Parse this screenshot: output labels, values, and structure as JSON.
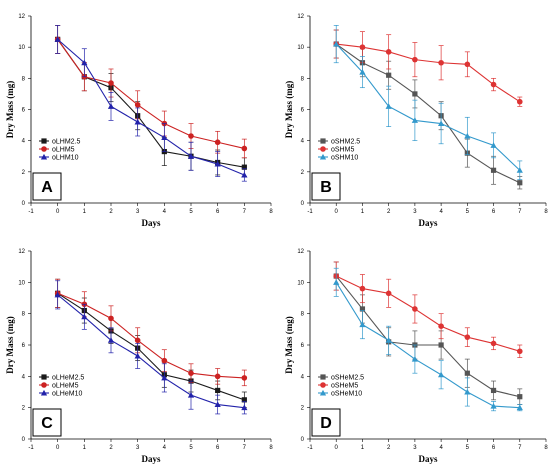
{
  "chart_data": [
    {
      "type": "line",
      "panel_label": "A",
      "xlabel": "Days",
      "ylabel": "Dry Mass (mg)",
      "xlim": [
        -1,
        8
      ],
      "ylim": [
        0,
        12
      ],
      "xticks": [
        -1,
        0,
        1,
        2,
        3,
        4,
        5,
        6,
        7,
        8
      ],
      "yticks": [
        0,
        2,
        4,
        6,
        8,
        10,
        12
      ],
      "legend_position": "bottom-left",
      "x": [
        0,
        1,
        2,
        3,
        4,
        5,
        6,
        7
      ],
      "series": [
        {
          "name": "oLHM2.5",
          "color": "#1a1a1a",
          "marker": "square",
          "values": [
            10.5,
            8.1,
            7.4,
            5.6,
            3.3,
            3.0,
            2.6,
            2.3
          ],
          "errors": [
            0.9,
            0.9,
            0.9,
            0.9,
            0.9,
            0.9,
            0.8,
            0.6
          ]
        },
        {
          "name": "oLHM5",
          "color": "#cc2222",
          "marker": "circle",
          "values": [
            10.5,
            8.1,
            7.7,
            6.3,
            5.1,
            4.3,
            3.9,
            3.5
          ],
          "errors": [
            0.9,
            0.9,
            0.9,
            0.9,
            0.8,
            0.8,
            0.7,
            0.6
          ]
        },
        {
          "name": "oLHM10",
          "color": "#2222aa",
          "marker": "triangle",
          "values": [
            10.5,
            9.0,
            6.2,
            5.2,
            4.2,
            3.0,
            2.5,
            1.8
          ],
          "errors": [
            0.9,
            0.9,
            0.9,
            0.9,
            0.9,
            0.9,
            0.8,
            0.4
          ]
        }
      ]
    },
    {
      "type": "line",
      "panel_label": "B",
      "xlabel": "Days",
      "ylabel": "Dry Mass (mg)",
      "xlim": [
        -1,
        8
      ],
      "ylim": [
        0,
        12
      ],
      "xticks": [
        -1,
        0,
        1,
        2,
        3,
        4,
        5,
        6,
        7,
        8
      ],
      "yticks": [
        0,
        2,
        4,
        6,
        8,
        10,
        12
      ],
      "legend_position": "bottom-left",
      "x": [
        0,
        1,
        2,
        3,
        4,
        5,
        6,
        7
      ],
      "series": [
        {
          "name": "oSHM2.5",
          "color": "#555555",
          "marker": "square",
          "values": [
            10.2,
            9.0,
            8.2,
            7.0,
            5.6,
            3.2,
            2.1,
            1.3
          ],
          "errors": [
            0.9,
            0.9,
            0.9,
            0.9,
            0.9,
            0.9,
            0.9,
            0.4
          ]
        },
        {
          "name": "oSHM5",
          "color": "#dd3333",
          "marker": "circle",
          "values": [
            10.2,
            10.0,
            9.7,
            9.2,
            9.0,
            8.9,
            7.6,
            6.5
          ],
          "errors": [
            0.9,
            1.0,
            1.1,
            1.1,
            1.1,
            0.8,
            0.4,
            0.3
          ]
        },
        {
          "name": "oSHM10",
          "color": "#3399cc",
          "marker": "triangle",
          "values": [
            10.2,
            8.4,
            6.2,
            5.3,
            5.1,
            4.3,
            3.7,
            2.1
          ],
          "errors": [
            1.2,
            1.0,
            1.3,
            1.3,
            1.3,
            1.2,
            0.8,
            0.6
          ]
        }
      ]
    },
    {
      "type": "line",
      "panel_label": "C",
      "xlabel": "Days",
      "ylabel": "Dry Mass (mg)",
      "xlim": [
        -1,
        8
      ],
      "ylim": [
        0,
        12
      ],
      "xticks": [
        -1,
        0,
        1,
        2,
        3,
        4,
        5,
        6,
        7,
        8
      ],
      "yticks": [
        0,
        2,
        4,
        6,
        8,
        10,
        12
      ],
      "legend_position": "bottom-left",
      "x": [
        0,
        1,
        2,
        3,
        4,
        5,
        6,
        7
      ],
      "series": [
        {
          "name": "oLHeM2.5",
          "color": "#1a1a1a",
          "marker": "square",
          "values": [
            9.3,
            8.2,
            6.9,
            5.8,
            4.1,
            3.7,
            3.1,
            2.5
          ],
          "errors": [
            0.9,
            0.8,
            0.8,
            0.8,
            0.8,
            0.7,
            0.6,
            0.5
          ]
        },
        {
          "name": "oLHeM5",
          "color": "#cc2222",
          "marker": "circle",
          "values": [
            9.3,
            8.6,
            7.7,
            6.3,
            5.0,
            4.2,
            4.0,
            3.9
          ],
          "errors": [
            0.9,
            0.8,
            0.8,
            0.8,
            0.7,
            0.6,
            0.5,
            0.5
          ]
        },
        {
          "name": "oLHeM10",
          "color": "#2222aa",
          "marker": "triangle",
          "values": [
            9.2,
            7.8,
            6.3,
            5.3,
            3.9,
            2.8,
            2.2,
            2.0
          ],
          "errors": [
            0.9,
            0.8,
            0.8,
            0.8,
            0.9,
            0.9,
            0.6,
            0.4
          ]
        }
      ]
    },
    {
      "type": "line",
      "panel_label": "D",
      "xlabel": "Days",
      "ylabel": "Dry Mass (mg)",
      "xlim": [
        -1,
        8
      ],
      "ylim": [
        0,
        12
      ],
      "xticks": [
        -1,
        0,
        1,
        2,
        3,
        4,
        5,
        6,
        7,
        8
      ],
      "yticks": [
        0,
        2,
        4,
        6,
        8,
        10,
        12
      ],
      "legend_position": "bottom-left",
      "x": [
        0,
        1,
        2,
        3,
        4,
        5,
        6,
        7
      ],
      "series": [
        {
          "name": "oSHeM2.5",
          "color": "#555555",
          "marker": "square",
          "values": [
            10.4,
            8.3,
            6.2,
            6.0,
            6.0,
            4.2,
            3.1,
            2.7
          ],
          "errors": [
            0.9,
            0.9,
            0.9,
            0.9,
            0.9,
            0.9,
            0.6,
            0.5
          ]
        },
        {
          "name": "oSHeM5",
          "color": "#dd3333",
          "marker": "circle",
          "values": [
            10.4,
            9.6,
            9.3,
            8.3,
            7.2,
            6.5,
            6.1,
            5.6
          ],
          "errors": [
            0.9,
            0.9,
            0.9,
            0.9,
            0.8,
            0.6,
            0.4,
            0.4
          ]
        },
        {
          "name": "oSHeM10",
          "color": "#3399cc",
          "marker": "triangle",
          "values": [
            10.0,
            7.3,
            6.3,
            5.1,
            4.1,
            3.0,
            2.1,
            2.0
          ],
          "errors": [
            0.9,
            0.9,
            0.9,
            0.9,
            0.9,
            0.9,
            0.3,
            0.2
          ]
        }
      ]
    }
  ]
}
